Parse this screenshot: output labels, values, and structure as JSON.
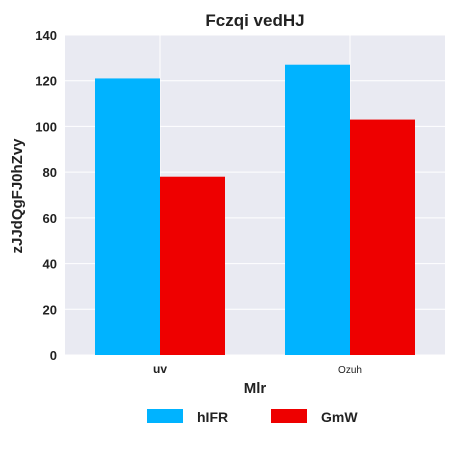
{
  "chart_data": {
    "type": "bar",
    "title": "Fczqi vedHJ",
    "xlabel": "Mlr",
    "ylabel": "zJJdQgFJ0hZvy",
    "categories": [
      "uv",
      "Ozuh"
    ],
    "series": [
      {
        "name": "hIFR",
        "values": [
          121,
          127
        ],
        "color": "#00b3ff"
      },
      {
        "name": "GmW",
        "values": [
          78,
          103
        ],
        "color": "#ee0000"
      }
    ],
    "ylim": [
      0,
      140
    ],
    "yticks": [
      0,
      20,
      40,
      60,
      80,
      100,
      120,
      140
    ],
    "grid": true,
    "background": "#e9eaf2",
    "legend_position": "bottom-center"
  }
}
